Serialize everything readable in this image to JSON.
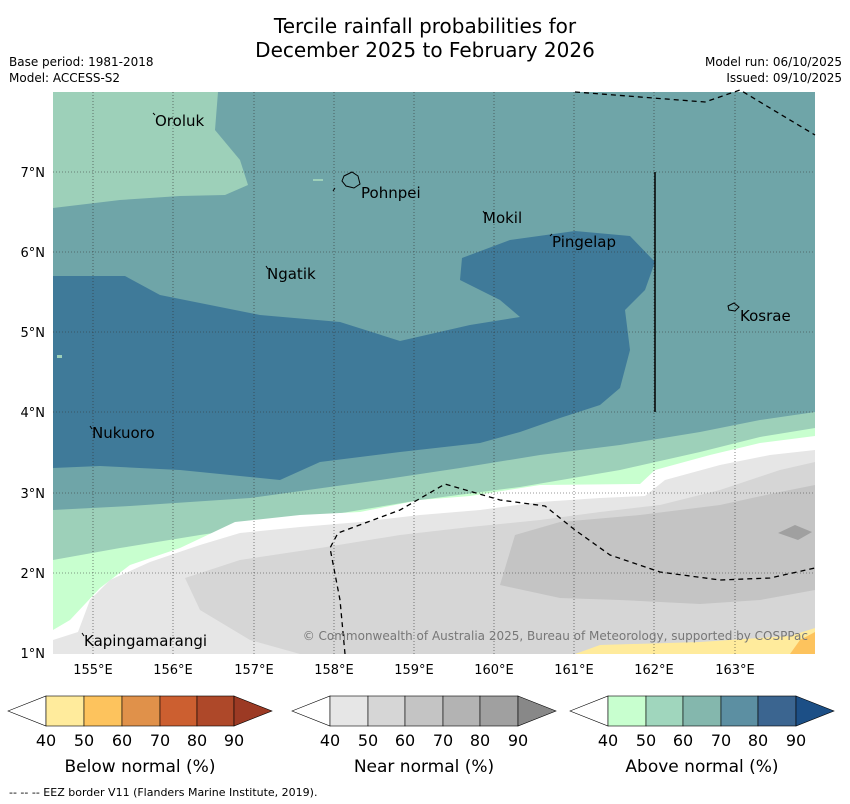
{
  "header": {
    "title_line1": "Tercile rainfall probabilities for",
    "title_line2": "December 2025 to February 2026",
    "base_period": "Base period: 1981-2018",
    "model": "Model: ACCESS-S2",
    "model_run": "Model run: 06/10/2025",
    "issued": "Issued: 09/10/2025"
  },
  "map": {
    "lon_ticks": [
      "155°E",
      "156°E",
      "157°E",
      "158°E",
      "159°E",
      "160°E",
      "161°E",
      "162°E",
      "163°E"
    ],
    "lat_ticks": [
      "7°N",
      "6°N",
      "5°N",
      "4°N",
      "3°N",
      "2°N",
      "1°N"
    ],
    "places": [
      "Oroluk",
      "Pohnpei",
      "Mokil",
      "Pingelap",
      "Ngatik",
      "Kosrae",
      "Nukuoro",
      "Kapingamarangi"
    ],
    "copyright": "© Commonwealth of Australia 2025, Bureau of Meteorology, supported by COSPPac"
  },
  "legend": {
    "ticks": [
      "40",
      "50",
      "60",
      "70",
      "80",
      "90"
    ],
    "below": {
      "title": "Below normal (%)",
      "colors": [
        "#ffffff",
        "#ffeb9c",
        "#fdc35d",
        "#e0914a",
        "#cc5f30",
        "#ae4829",
        "#9c3a24"
      ]
    },
    "near": {
      "title": "Near normal (%)",
      "colors": [
        "#ffffff",
        "#e6e6e6",
        "#d6d6d6",
        "#c4c4c4",
        "#b3b3b3",
        "#a0a0a0",
        "#888888"
      ]
    },
    "above": {
      "title": "Above normal (%)",
      "colors": [
        "#ffffff",
        "#c8ffcf",
        "#a0d6bd",
        "#84b7ad",
        "#5c8fa2",
        "#3b6590",
        "#1c4f86"
      ]
    }
  },
  "footer": "--  --  -- EEZ border V11 (Flanders Marine Institute, 2019)."
}
